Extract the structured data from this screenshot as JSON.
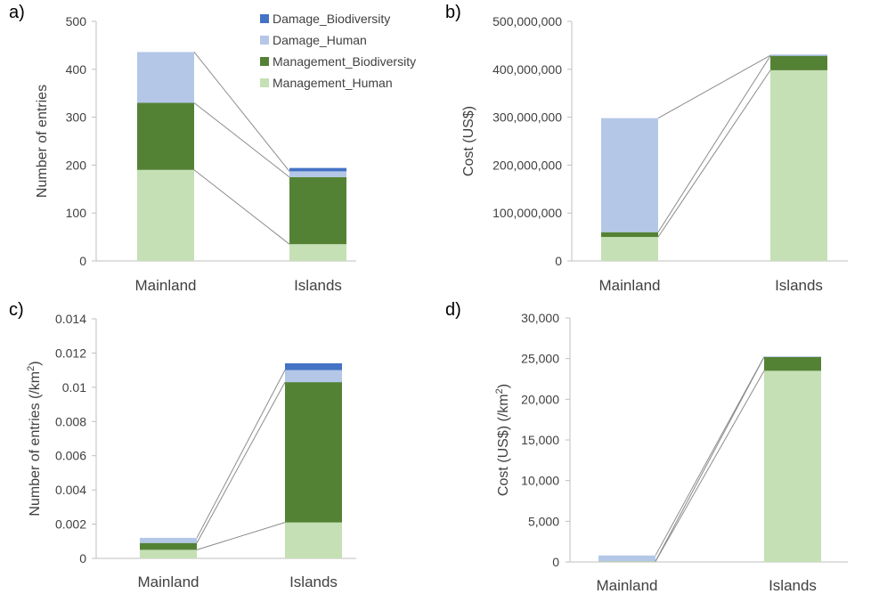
{
  "colors": {
    "Damage_Biodiversity": "#4472c4",
    "Damage_Human": "#b4c7e7",
    "Management_Biodiversity": "#548235",
    "Management_Human": "#c5e0b4",
    "connector": "#8c8c8c",
    "axis": "#bfbfbf"
  },
  "legend": [
    {
      "name": "Damage_Biodiversity",
      "color": "#4472c4"
    },
    {
      "name": "Damage_Human",
      "color": "#b4c7e7"
    },
    {
      "name": "Management_Biodiversity",
      "color": "#548235"
    },
    {
      "name": "Management_Human",
      "color": "#c5e0b4"
    }
  ],
  "chart_data": [
    {
      "panel": "a)",
      "type": "bar",
      "stacked": true,
      "categories": [
        "Mainland",
        "Islands"
      ],
      "ylabel": "Number of entries",
      "ylim": [
        0,
        500
      ],
      "yticks": [
        0,
        100,
        200,
        300,
        400,
        500
      ],
      "ytick_labels": [
        "0",
        "100",
        "200",
        "300",
        "400",
        "500"
      ],
      "series": [
        {
          "name": "Management_Human",
          "values": [
            190,
            35
          ]
        },
        {
          "name": "Management_Biodiversity",
          "values": [
            140,
            140
          ]
        },
        {
          "name": "Damage_Human",
          "values": [
            106,
            12
          ]
        },
        {
          "name": "Damage_Biodiversity",
          "values": [
            0,
            7
          ]
        }
      ]
    },
    {
      "panel": "b)",
      "type": "bar",
      "stacked": true,
      "categories": [
        "Mainland",
        "Islands"
      ],
      "ylabel": "Cost (US$)",
      "ylim": [
        0,
        500000000
      ],
      "yticks": [
        0,
        100000000,
        200000000,
        300000000,
        400000000,
        500000000
      ],
      "ytick_labels": [
        "0",
        "100,000,000",
        "200,000,000",
        "300,000,000",
        "400,000,000",
        "500,000,000"
      ],
      "series": [
        {
          "name": "Management_Human",
          "values": [
            50000000,
            398000000
          ]
        },
        {
          "name": "Management_Biodiversity",
          "values": [
            10000000,
            30000000
          ]
        },
        {
          "name": "Damage_Human",
          "values": [
            238000000,
            1000000
          ]
        },
        {
          "name": "Damage_Biodiversity",
          "values": [
            0,
            1000000
          ]
        }
      ]
    },
    {
      "panel": "c)",
      "type": "bar",
      "stacked": true,
      "categories": [
        "Mainland",
        "Islands"
      ],
      "ylabel": "Number of entries (/km²)",
      "ylim": [
        0,
        0.014
      ],
      "yticks": [
        0,
        0.002,
        0.004,
        0.006,
        0.008,
        0.01,
        0.012,
        0.014
      ],
      "ytick_labels": [
        "0",
        "0.002",
        "0.004",
        "0.006",
        "0.008",
        "0.01",
        "0.012",
        "0.014"
      ],
      "series": [
        {
          "name": "Management_Human",
          "values": [
            0.0005,
            0.0021
          ]
        },
        {
          "name": "Management_Biodiversity",
          "values": [
            0.0004,
            0.0082
          ]
        },
        {
          "name": "Damage_Human",
          "values": [
            0.0003,
            0.0007
          ]
        },
        {
          "name": "Damage_Biodiversity",
          "values": [
            0,
            0.0004
          ]
        }
      ]
    },
    {
      "panel": "d)",
      "type": "bar",
      "stacked": true,
      "categories": [
        "Mainland",
        "Islands"
      ],
      "ylabel": "Cost (US$) (/km²)",
      "ylim": [
        0,
        30000
      ],
      "yticks": [
        0,
        5000,
        10000,
        15000,
        20000,
        25000,
        30000
      ],
      "ytick_labels": [
        "0",
        "5,000",
        "10,000",
        "15,000",
        "20,000",
        "25,000",
        "30,000"
      ],
      "series": [
        {
          "name": "Management_Human",
          "values": [
            50,
            23500
          ]
        },
        {
          "name": "Management_Biodiversity",
          "values": [
            30,
            1700
          ]
        },
        {
          "name": "Damage_Human",
          "values": [
            720,
            30
          ]
        },
        {
          "name": "Damage_Biodiversity",
          "values": [
            0,
            20
          ]
        }
      ]
    }
  ]
}
